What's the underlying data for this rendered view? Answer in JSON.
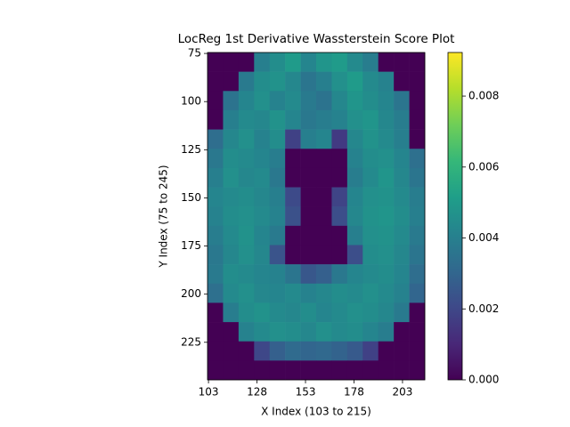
{
  "chart_data": {
    "type": "heatmap",
    "title": "LocReg 1st Derivative Wassterstein Score Plot",
    "x_label": "X Index (103 to 215)",
    "y_label": "Y Index (75 to 245)",
    "colormap": "viridis",
    "x": [
      106.5,
      114.5,
      122.5,
      130.5,
      138.5,
      146.5,
      154.5,
      162.5,
      170.5,
      178.5,
      186.5,
      194.5,
      202.5,
      210.5
    ],
    "y": [
      79.5,
      89.5,
      99.5,
      109.5,
      119.5,
      129.5,
      139.5,
      149.5,
      159.5,
      169.5,
      179.5,
      189.5,
      199.5,
      209.5,
      219.5,
      229.5,
      239.5
    ],
    "z": [
      [
        0,
        0,
        0,
        0.004,
        0.0045,
        0.005,
        0.0042,
        0.0048,
        0.005,
        0.0044,
        0.0039,
        0,
        0,
        0
      ],
      [
        0,
        0,
        0.0038,
        0.0045,
        0.0047,
        0.0043,
        0.0036,
        0.004,
        0.0046,
        0.005,
        0.0044,
        0.0041,
        0,
        0
      ],
      [
        0,
        0.0035,
        0.0042,
        0.0046,
        0.0041,
        0.0044,
        0.0038,
        0.0035,
        0.0043,
        0.0048,
        0.0045,
        0.0042,
        0.0036,
        0
      ],
      [
        0,
        0.004,
        0.0044,
        0.0043,
        0.0047,
        0.0042,
        0.0037,
        0.0039,
        0.0041,
        0.0046,
        0.0048,
        0.0043,
        0.0039,
        0
      ],
      [
        0.0033,
        0.0043,
        0.0046,
        0.0041,
        0.0045,
        0.0018,
        0.004,
        0.0042,
        0.0016,
        0.0043,
        0.0047,
        0.0044,
        0.004,
        0
      ],
      [
        0.0037,
        0.0045,
        0.0044,
        0.0042,
        0.0039,
        0,
        0,
        0,
        0,
        0.0041,
        0.0045,
        0.0046,
        0.0042,
        0.0034
      ],
      [
        0.004,
        0.0046,
        0.0043,
        0.0044,
        0.0037,
        0,
        0,
        0,
        0,
        0.0039,
        0.0044,
        0.0048,
        0.0043,
        0.0036
      ],
      [
        0.0042,
        0.0044,
        0.0045,
        0.0043,
        0.004,
        0.0021,
        0,
        0,
        0.0019,
        0.0042,
        0.0046,
        0.0047,
        0.0044,
        0.0039
      ],
      [
        0.0041,
        0.0045,
        0.0046,
        0.0044,
        0.0041,
        0.0023,
        0,
        0,
        0.0022,
        0.0043,
        0.0047,
        0.0048,
        0.0045,
        0.004
      ],
      [
        0.0039,
        0.0044,
        0.0047,
        0.0042,
        0.0038,
        0,
        0,
        0,
        0,
        0.004,
        0.0046,
        0.0047,
        0.0044,
        0.0038
      ],
      [
        0.0037,
        0.0043,
        0.0046,
        0.0043,
        0.0024,
        0,
        0,
        0,
        0,
        0.0022,
        0.0045,
        0.0046,
        0.0043,
        0.0036
      ],
      [
        0.0038,
        0.0045,
        0.0044,
        0.0042,
        0.0041,
        0.0036,
        0.0025,
        0.0028,
        0.0037,
        0.0042,
        0.0044,
        0.0045,
        0.0042,
        0.0033
      ],
      [
        0.0034,
        0.0044,
        0.0046,
        0.0043,
        0.0042,
        0.0044,
        0.0041,
        0.0043,
        0.0045,
        0.0044,
        0.0046,
        0.0044,
        0.0041,
        0.003
      ],
      [
        0,
        0.0039,
        0.0045,
        0.0047,
        0.0044,
        0.0043,
        0.0045,
        0.0042,
        0.0044,
        0.0046,
        0.0045,
        0.0043,
        0.0038,
        0
      ],
      [
        0,
        0,
        0.0041,
        0.0044,
        0.0046,
        0.0045,
        0.0043,
        0.0046,
        0.0044,
        0.0045,
        0.0042,
        0.0039,
        0,
        0
      ],
      [
        0,
        0,
        0,
        0.002,
        0.0028,
        0.0032,
        0.003,
        0.0031,
        0.0029,
        0.0026,
        0.0018,
        0,
        0,
        0
      ],
      [
        0,
        0,
        0,
        0,
        0,
        0,
        0,
        0,
        0,
        0,
        0,
        0,
        0,
        0
      ]
    ],
    "xlim": [
      102.5,
      214.5
    ],
    "ylim": [
      244.5,
      74.5
    ],
    "xticks": [
      103,
      128,
      153,
      178,
      203
    ],
    "yticks": [
      75,
      100,
      125,
      150,
      175,
      200,
      225
    ],
    "clim": [
      0,
      0.00923
    ],
    "cticks": [
      {
        "value": 0,
        "label": "0.000"
      },
      {
        "value": 0.002,
        "label": "0.002"
      },
      {
        "value": 0.004,
        "label": "0.004"
      },
      {
        "value": 0.006,
        "label": "0.006"
      },
      {
        "value": 0.008,
        "label": "0.008"
      }
    ]
  }
}
